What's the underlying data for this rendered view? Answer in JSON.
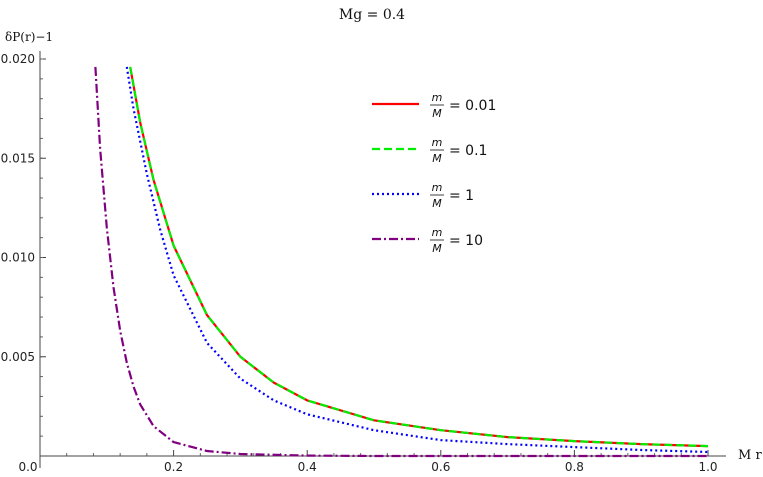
{
  "chart_data": {
    "type": "line",
    "title": "Mg = 0.4",
    "xlabel": "M r",
    "ylabel": "δP(r)−1",
    "xlim": [
      0,
      1
    ],
    "ylim": [
      0,
      0.02
    ],
    "xticks": [
      {
        "v": 0.0,
        "label": "0.0"
      },
      {
        "v": 0.2,
        "label": "0.2"
      },
      {
        "v": 0.4,
        "label": "0.4"
      },
      {
        "v": 0.6,
        "label": "0.6"
      },
      {
        "v": 0.8,
        "label": "0.8"
      },
      {
        "v": 1.0,
        "label": "1.0"
      }
    ],
    "yticks": [
      {
        "v": 0.005,
        "label": "0.005"
      },
      {
        "v": 0.01,
        "label": "0.010"
      },
      {
        "v": 0.015,
        "label": "0.015"
      },
      {
        "v": 0.02,
        "label": "0.020"
      }
    ],
    "legend_position": "top-right",
    "series": [
      {
        "name": "= 0.01",
        "frac_num": "m",
        "frac_den": "M",
        "color": "#ff0000",
        "dash": "solid",
        "x": [
          0.135,
          0.15,
          0.17,
          0.2,
          0.25,
          0.3,
          0.35,
          0.4,
          0.5,
          0.6,
          0.7,
          0.8,
          0.9,
          1.0
        ],
        "y": [
          0.0196,
          0.0168,
          0.0139,
          0.0106,
          0.0071,
          0.005,
          0.0037,
          0.0028,
          0.0018,
          0.0013,
          0.00095,
          0.00075,
          0.0006,
          0.0005
        ]
      },
      {
        "name": "= 0.1",
        "frac_num": "m",
        "frac_den": "M",
        "color": "#00ee00",
        "dash": "dashed",
        "x": [
          0.135,
          0.15,
          0.17,
          0.2,
          0.25,
          0.3,
          0.35,
          0.4,
          0.5,
          0.6,
          0.7,
          0.8,
          0.9,
          1.0
        ],
        "y": [
          0.0196,
          0.0168,
          0.0139,
          0.0106,
          0.0071,
          0.005,
          0.0037,
          0.0028,
          0.0018,
          0.0013,
          0.00095,
          0.00075,
          0.0006,
          0.0005
        ]
      },
      {
        "name": "= 1",
        "frac_num": "m",
        "frac_den": "M",
        "color": "#0000ff",
        "dash": "dotted",
        "x": [
          0.13,
          0.14,
          0.16,
          0.18,
          0.2,
          0.25,
          0.3,
          0.35,
          0.4,
          0.5,
          0.6,
          0.7,
          0.8,
          0.9,
          1.0
        ],
        "y": [
          0.0196,
          0.0175,
          0.0142,
          0.0114,
          0.0091,
          0.0057,
          0.0039,
          0.0028,
          0.0021,
          0.0013,
          0.0008,
          0.0006,
          0.00045,
          0.0003,
          0.0002
        ]
      },
      {
        "name": "= 10",
        "frac_num": "m",
        "frac_den": "M",
        "color": "#800080",
        "dash": "dashdot",
        "x": [
          0.083,
          0.09,
          0.1,
          0.11,
          0.12,
          0.13,
          0.14,
          0.15,
          0.17,
          0.2,
          0.25,
          0.3,
          0.4,
          0.5,
          0.7,
          1.0
        ],
        "y": [
          0.0196,
          0.0155,
          0.0115,
          0.0085,
          0.0063,
          0.0047,
          0.0035,
          0.0026,
          0.0015,
          0.0007,
          0.00025,
          0.0001,
          2e-05,
          0.0,
          0.0,
          0.0
        ]
      }
    ]
  }
}
